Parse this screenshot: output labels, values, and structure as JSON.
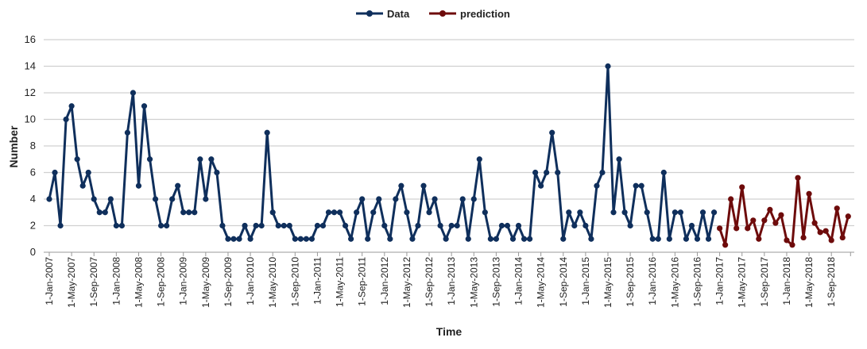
{
  "chart_data": {
    "type": "line",
    "title": "",
    "xlabel": "Time",
    "ylabel": "Number",
    "ylim": [
      0,
      16
    ],
    "yticks": [
      0,
      2,
      4,
      6,
      8,
      10,
      12,
      14,
      16
    ],
    "grid": true,
    "legend_position": "top-center",
    "x_start": "Jan-2007",
    "x_interval": "monthly",
    "x_tick_labels": [
      "1-Jan-2007",
      "1-May-2007",
      "1-Sep-2007",
      "1-Jan-2008",
      "1-May-2008",
      "1-Sep-2008",
      "1-Jan-2009",
      "1-May-2009",
      "1-Sep-2009",
      "1-Jan-2010",
      "1-May-2010",
      "1-Sep-2010",
      "1-Jan-2011",
      "1-May-2011",
      "1-Sep-2011",
      "1-Jan-2012",
      "1-May-2012",
      "1-Sep-2012",
      "1-Jan-2013",
      "1-May-2013",
      "1-Sep-2013",
      "1-Jan-2014",
      "1-May-2014",
      "1-Sep-2014",
      "1-Jan-2015",
      "1-May-2015",
      "1-Sep-2015",
      "1-Jan-2016",
      "1-May-2016",
      "1-Sep-2016",
      "1-Jan-2017",
      "1-May-2017",
      "1-Sep-2017",
      "1-Jan-2018",
      "1-May-2018",
      "1-Sep-2018"
    ],
    "series": [
      {
        "name": "Data",
        "color": "#0f2f5c",
        "start_index": 0,
        "values": [
          4,
          6,
          2,
          10,
          11,
          7,
          5,
          6,
          4,
          3,
          3,
          4,
          2,
          2,
          9,
          12,
          5,
          11,
          7,
          4,
          2,
          2,
          4,
          5,
          3,
          3,
          3,
          7,
          4,
          7,
          6,
          2,
          1,
          1,
          1,
          2,
          1,
          2,
          2,
          9,
          3,
          2,
          2,
          2,
          1,
          1,
          1,
          1,
          2,
          2,
          3,
          3,
          3,
          2,
          1,
          3,
          4,
          1,
          3,
          4,
          2,
          1,
          4,
          5,
          3,
          1,
          2,
          5,
          3,
          4,
          2,
          1,
          2,
          2,
          4,
          1,
          4,
          7,
          3,
          1,
          1,
          2,
          2,
          1,
          2,
          1,
          1,
          6,
          5,
          6,
          9,
          6,
          1,
          3,
          2,
          3,
          2,
          1,
          5,
          6,
          14,
          3,
          7,
          3,
          2,
          5,
          5,
          3,
          1,
          1,
          6,
          1,
          3,
          3,
          1,
          2,
          1,
          3,
          1,
          3
        ]
      },
      {
        "name": "prediction",
        "color": "#6e0b0b",
        "start_index": 120,
        "values": [
          1.8,
          0.55,
          4.0,
          1.8,
          4.9,
          1.8,
          2.4,
          1.0,
          2.4,
          3.2,
          2.2,
          2.8,
          0.9,
          0.55,
          5.6,
          1.1,
          4.4,
          2.2,
          1.5,
          1.6,
          0.9,
          3.3,
          1.1,
          2.7
        ]
      }
    ]
  }
}
